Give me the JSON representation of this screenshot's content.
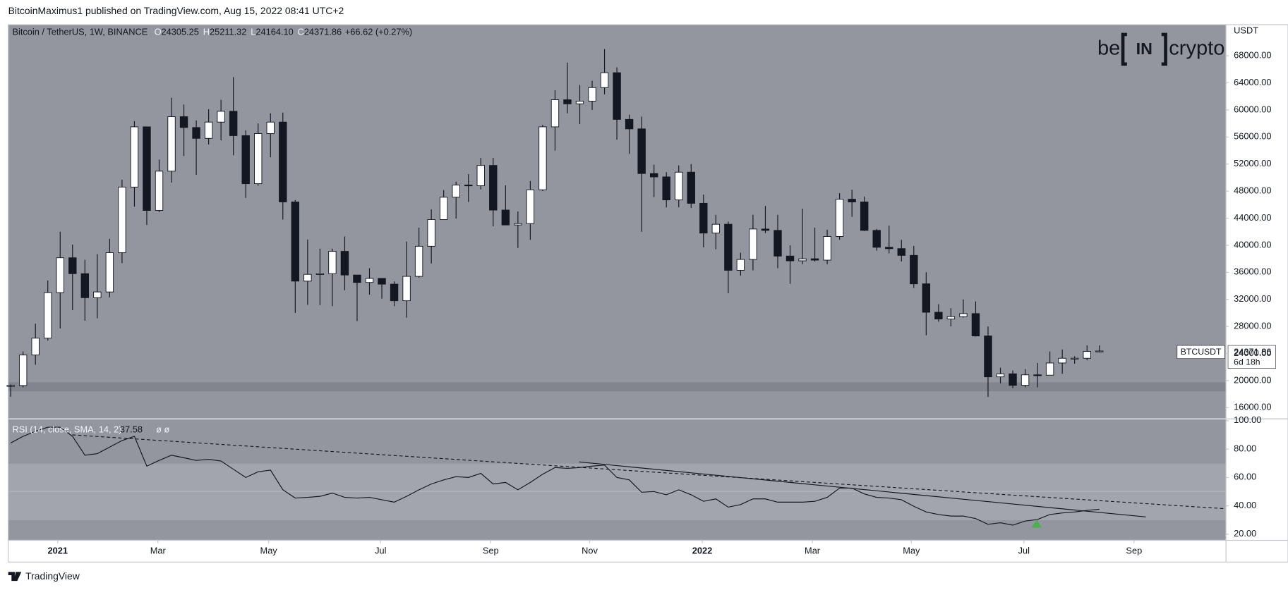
{
  "header": {
    "publisher": "BitcoinMaximus1 published on TradingView.com, Aug 15, 2022 08:41 UTC+2"
  },
  "logo": {
    "left": "be",
    "box": "IN",
    "right": "crypto"
  },
  "footer": {
    "brand": "TradingView"
  },
  "chart_data": [
    {
      "type": "candlestick",
      "title": "Bitcoin / TetherUS, 1W, BINANCE",
      "ohlc_legend": {
        "labels": [
          "O",
          "H",
          "L",
          "C"
        ],
        "values": [
          "24305.25",
          "25211.32",
          "24164.10",
          "24371.86"
        ],
        "change": "+66.62 (+0.27%)"
      },
      "axis_unit": "USDT",
      "price_tag": {
        "symbol": "BTCUSDT",
        "countdown": "6d 18h"
      },
      "up_color": "#ffffff",
      "down_color": "#131722",
      "categories": [
        null,
        null,
        null,
        null,
        null,
        null,
        null,
        null,
        null,
        null,
        null,
        null,
        null,
        null,
        null,
        null,
        null,
        null,
        null,
        null,
        null,
        null,
        null,
        null,
        null,
        null,
        null,
        null,
        null,
        null,
        null,
        null,
        null,
        null,
        null,
        null,
        null,
        null,
        null,
        null,
        null,
        null,
        null,
        null,
        null,
        null,
        null,
        null,
        null,
        null,
        null,
        null,
        null,
        null,
        null,
        null,
        null,
        null,
        null,
        null,
        null,
        null,
        null,
        null,
        null,
        null,
        null,
        null,
        null,
        null,
        null,
        null,
        null,
        null,
        null,
        null,
        null,
        null,
        null,
        null,
        null,
        null,
        null,
        null,
        null,
        null,
        null,
        null,
        null
      ],
      "open": [
        19150,
        19270,
        23780,
        26270,
        33000,
        38150,
        35800,
        32250,
        33100,
        38900,
        48600,
        57500,
        45150,
        50950,
        59000,
        57400,
        55800,
        58200,
        59800,
        56200,
        49100,
        56500,
        58200,
        46400,
        34700,
        35700,
        35800,
        39100,
        35600,
        34500,
        35100,
        34250,
        31800,
        35400,
        39850,
        43800,
        47100,
        48900,
        48800,
        51800,
        45200,
        43000,
        43200,
        48200,
        57500,
        61500,
        60900,
        61300,
        63300,
        65500,
        58600,
        57200,
        50600,
        50100,
        46700,
        50800,
        46200,
        41800,
        43100,
        36300,
        37900,
        42400,
        42200,
        38400,
        37700,
        38000,
        37800,
        41300,
        46800,
        46400,
        42200,
        39700,
        39500,
        38500,
        34300,
        30100,
        29100,
        29450,
        29900,
        26600,
        20550,
        21000,
        19300,
        20850,
        20800,
        22600,
        23300,
        23300,
        24305.25
      ],
      "high": [
        19450,
        24300,
        28400,
        34800,
        42000,
        40100,
        37850,
        38700,
        40950,
        49700,
        58350,
        57550,
        52650,
        61800,
        60800,
        58450,
        60100,
        61500,
        64850,
        57000,
        58000,
        59500,
        59600,
        46700,
        40850,
        39500,
        39500,
        41300,
        35600,
        36600,
        35100,
        34650,
        40550,
        42600,
        45300,
        48150,
        49400,
        50500,
        52900,
        52900,
        48850,
        45000,
        49500,
        57800,
        62900,
        67000,
        63700,
        64300,
        69000,
        66300,
        59300,
        59000,
        51900,
        50800,
        51800,
        52000,
        47500,
        44500,
        43500,
        38900,
        44500,
        45800,
        44500,
        40000,
        45400,
        42600,
        42300,
        47700,
        48200,
        47200,
        42400,
        42900,
        40800,
        39900,
        36000,
        31300,
        30700,
        32000,
        31700,
        28000,
        21900,
        21500,
        21700,
        22600,
        24300,
        24600,
        23600,
        25200,
        25211.32
      ],
      "low": [
        17600,
        19000,
        22350,
        25900,
        27700,
        30400,
        28850,
        29200,
        32300,
        37350,
        45700,
        43000,
        44900,
        49250,
        53200,
        50400,
        54900,
        55500,
        53300,
        47000,
        48800,
        53000,
        43800,
        30000,
        31200,
        31150,
        31000,
        33350,
        28800,
        32700,
        32100,
        31000,
        29300,
        35200,
        37300,
        43750,
        43950,
        46400,
        48250,
        42800,
        43000,
        39600,
        40800,
        48000,
        54000,
        59500,
        57900,
        60000,
        62300,
        55600,
        53500,
        42000,
        47100,
        45600,
        45600,
        45500,
        39700,
        39400,
        32900,
        35500,
        36300,
        41800,
        36600,
        34300,
        37200,
        37600,
        37200,
        40800,
        44200,
        42100,
        39200,
        38800,
        37600,
        33700,
        26700,
        28700,
        28000,
        29300,
        26500,
        17600,
        19600,
        18900,
        19000,
        19000,
        20800,
        21000,
        22500,
        23000,
        24164.1
      ],
      "close": [
        19270,
        23780,
        26270,
        33000,
        38150,
        35800,
        32250,
        33100,
        38900,
        48600,
        57500,
        45150,
        50950,
        59000,
        57400,
        55800,
        58200,
        59800,
        56200,
        49100,
        56500,
        58200,
        46400,
        34700,
        35700,
        35800,
        39100,
        35600,
        34500,
        35100,
        34250,
        31800,
        35400,
        39850,
        43800,
        47100,
        48900,
        48800,
        51800,
        45200,
        43000,
        43200,
        48200,
        57500,
        61500,
        60900,
        61300,
        63300,
        65500,
        58600,
        57200,
        50600,
        50100,
        46700,
        50800,
        46200,
        41800,
        43100,
        36300,
        37900,
        42400,
        42200,
        38400,
        37700,
        38000,
        37800,
        41300,
        46800,
        46400,
        42200,
        39700,
        39500,
        38500,
        34300,
        30100,
        29100,
        29450,
        29900,
        26600,
        20550,
        21000,
        19300,
        20850,
        20800,
        22600,
        23300,
        23300,
        24305.25,
        24371.86
      ],
      "ylim": [
        14400,
        72600
      ],
      "yticks": [
        {
          "value": 16000,
          "label": "16000.00"
        },
        {
          "value": 20000,
          "label": "20000.00"
        },
        {
          "value": 24000,
          "label": "24000.00"
        },
        {
          "value": 28000,
          "label": "28000.00"
        },
        {
          "value": 32000,
          "label": "32000.00"
        },
        {
          "value": 36000,
          "label": "36000.00"
        },
        {
          "value": 40000,
          "label": "40000.00"
        },
        {
          "value": 44000,
          "label": "44000.00"
        },
        {
          "value": 48000,
          "label": "48000.00"
        },
        {
          "value": 52000,
          "label": "52000.00"
        },
        {
          "value": 56000,
          "label": "56000.00"
        },
        {
          "value": 60000,
          "label": "60000.00"
        },
        {
          "value": 64000,
          "label": "64000.00"
        },
        {
          "value": 68000,
          "label": "68000.00"
        }
      ],
      "xlim": [
        -0.2,
        98.2
      ],
      "xticks": [
        {
          "value": 3.8,
          "label": "2021"
        },
        {
          "value": 11.9,
          "label": "Mar"
        },
        {
          "value": 20.85,
          "label": "May"
        },
        {
          "value": 29.9,
          "label": "Jul"
        },
        {
          "value": 38.8,
          "label": "Sep"
        },
        {
          "value": 46.8,
          "label": "Nov"
        },
        {
          "value": 55.9,
          "label": "2022"
        },
        {
          "value": 64.8,
          "label": "Mar"
        },
        {
          "value": 72.8,
          "label": "May"
        },
        {
          "value": 81.9,
          "label": "Jul"
        },
        {
          "value": 90.8,
          "label": "Sep"
        }
      ]
    },
    {
      "type": "line",
      "title": "RSI (14, close, SMA, 14, 2)",
      "na_marks": "ø ø",
      "color": "#131722",
      "values": [
        84.3,
        89,
        92.5,
        95.4,
        95.4,
        89,
        75.7,
        76.8,
        81.4,
        86,
        89,
        68,
        72,
        75.7,
        73.9,
        72,
        72.8,
        71.6,
        65.8,
        60,
        64,
        65.2,
        51.3,
        45.5,
        46,
        46.7,
        49,
        46,
        45.5,
        46,
        44.3,
        42.6,
        46.7,
        51.3,
        55.4,
        58.3,
        60.6,
        60,
        62.9,
        55.4,
        56.5,
        51.3,
        56.5,
        62.3,
        67,
        66.4,
        67,
        68,
        68.7,
        60,
        58.3,
        49.6,
        50.1,
        47.8,
        51.3,
        47.8,
        43.2,
        44.9,
        39.1,
        40.9,
        44.9,
        44.9,
        42.6,
        42.6,
        42.6,
        43.2,
        46,
        52.5,
        52.5,
        48.4,
        46,
        45.5,
        44.3,
        39.7,
        35.7,
        33.9,
        32.8,
        32.8,
        31,
        27,
        28.1,
        26.4,
        29.3,
        30.4,
        33.9,
        35,
        35.7,
        36.8,
        37.58
      ],
      "ylim": [
        16,
        101
      ],
      "yticks": [
        {
          "value": 20,
          "label": "20.00"
        },
        {
          "value": 40,
          "label": "40.00"
        },
        {
          "value": 60,
          "label": "60.00"
        },
        {
          "value": 80,
          "label": "80.00"
        },
        {
          "value": 100,
          "label": "100.00"
        }
      ]
    }
  ]
}
